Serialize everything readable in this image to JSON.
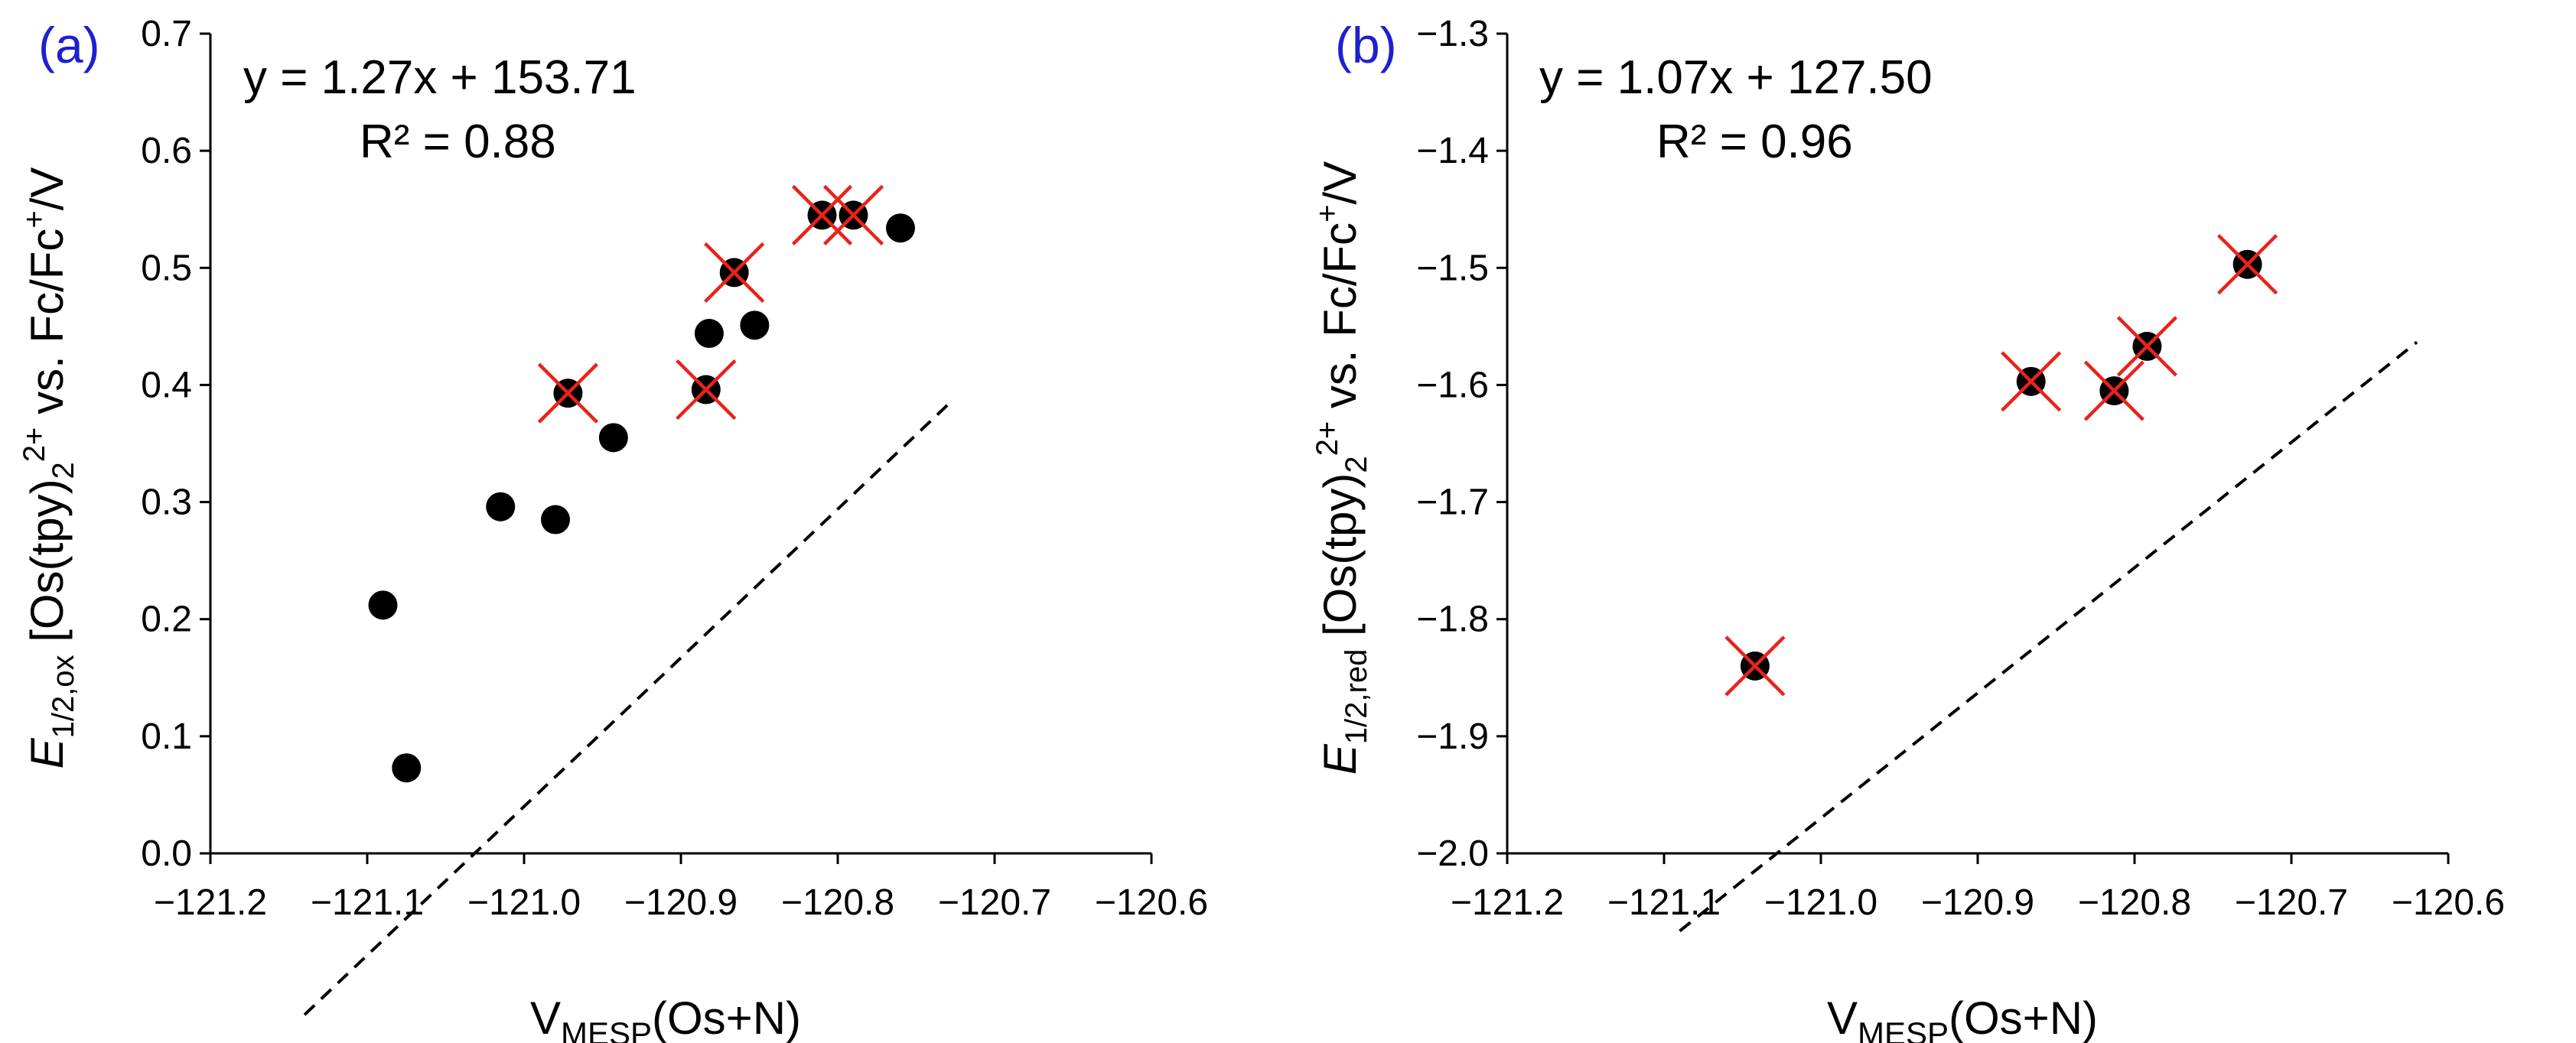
{
  "chart_data": [
    {
      "type": "scatter",
      "panel_label": "(a)",
      "equation": "y = 1.27x + 153.71",
      "r_squared": "R² = 0.88",
      "xlabel": {
        "main": "V",
        "sub": "MESP",
        "rest": "(Os+N)"
      },
      "ylabel": {
        "e": "E",
        "sub": "1/2,ox",
        "mid": " [Os(tpy)",
        "sub2": "2",
        "sup": "2+",
        "tail": " vs.  Fc/Fc",
        "sup2": "+",
        "end": "/V"
      },
      "xlim": [
        -121.2,
        -120.6
      ],
      "ylim": [
        0.0,
        0.7
      ],
      "xticks": [
        -121.2,
        -121.1,
        -121.0,
        -120.9,
        -120.8,
        -120.7,
        -120.6
      ],
      "xtick_labels": [
        "−121.2",
        "−121.1",
        "−121.0",
        "−120.9",
        "−120.8",
        "−120.7",
        "−120.6"
      ],
      "yticks": [
        0.0,
        0.1,
        0.2,
        0.3,
        0.4,
        0.5,
        0.6,
        0.7
      ],
      "ytick_labels": [
        "0.0",
        "0.1",
        "0.2",
        "0.3",
        "0.4",
        "0.5",
        "0.6",
        "0.7"
      ],
      "points": [
        {
          "x": -121.09,
          "y": 0.212,
          "crossed": false
        },
        {
          "x": -121.075,
          "y": 0.073,
          "crossed": false
        },
        {
          "x": -121.015,
          "y": 0.296,
          "crossed": false
        },
        {
          "x": -120.98,
          "y": 0.285,
          "crossed": false
        },
        {
          "x": -120.972,
          "y": 0.393,
          "crossed": true
        },
        {
          "x": -120.943,
          "y": 0.355,
          "crossed": false
        },
        {
          "x": -120.884,
          "y": 0.396,
          "crossed": true
        },
        {
          "x": -120.882,
          "y": 0.444,
          "crossed": false
        },
        {
          "x": -120.866,
          "y": 0.496,
          "crossed": true
        },
        {
          "x": -120.853,
          "y": 0.451,
          "crossed": false
        },
        {
          "x": -120.81,
          "y": 0.545,
          "crossed": true
        },
        {
          "x": -120.79,
          "y": 0.545,
          "crossed": true
        },
        {
          "x": -120.76,
          "y": 0.534,
          "crossed": false
        }
      ],
      "trendline": {
        "x": [
          -121.14,
          -120.73
        ]
      }
    },
    {
      "type": "scatter",
      "panel_label": "(b)",
      "equation": "y = 1.07x + 127.50",
      "r_squared": "R² = 0.96",
      "xlabel": {
        "main": "V",
        "sub": "MESP",
        "rest": "(Os+N)"
      },
      "ylabel": {
        "e": "E",
        "sub": "1/2,red",
        "mid": " [Os(tpy)",
        "sub2": "2",
        "sup": "2+",
        "tail": " vs.  Fc/Fc",
        "sup2": "+",
        "end": "/V"
      },
      "xlim": [
        -121.2,
        -120.6
      ],
      "ylim": [
        -2.0,
        -1.3
      ],
      "xticks": [
        -121.2,
        -121.1,
        -121.0,
        -120.9,
        -120.8,
        -120.7,
        -120.6
      ],
      "xtick_labels": [
        "−121.2",
        "−121.1",
        "−121.0",
        "−120.9",
        "−120.8",
        "−120.7",
        "−120.6"
      ],
      "yticks": [
        -2.0,
        -1.9,
        -1.8,
        -1.7,
        -1.6,
        -1.5,
        -1.4,
        -1.3
      ],
      "ytick_labels": [
        "−2.0",
        "−1.9",
        "−1.8",
        "−1.7",
        "−1.6",
        "−1.5",
        "−1.4",
        "−1.3"
      ],
      "points": [
        {
          "x": -121.042,
          "y": -1.84,
          "crossed": true
        },
        {
          "x": -120.866,
          "y": -1.597,
          "crossed": true
        },
        {
          "x": -120.813,
          "y": -1.605,
          "crossed": true
        },
        {
          "x": -120.792,
          "y": -1.567,
          "crossed": true
        },
        {
          "x": -120.728,
          "y": -1.497,
          "crossed": true
        }
      ],
      "trendline": {
        "x": [
          -121.09,
          -120.62
        ]
      }
    }
  ]
}
